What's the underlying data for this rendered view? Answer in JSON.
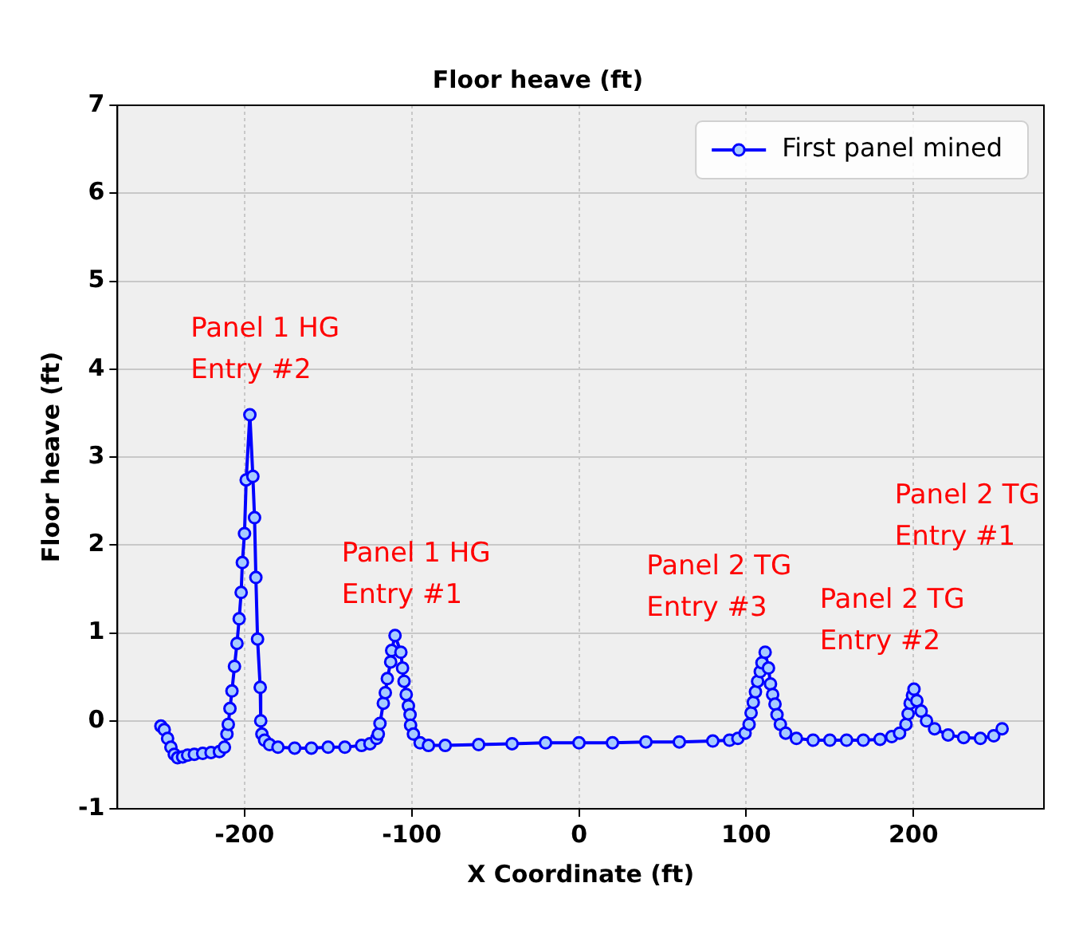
{
  "chart_data": {
    "type": "line",
    "title": "Floor heave (ft)",
    "xlabel": "X Coordinate (ft)",
    "ylabel": "Floor heave (ft)",
    "xlim": [
      -276,
      278
    ],
    "xticks": [
      -200,
      -100,
      0,
      100,
      200
    ],
    "ylim": [
      -1,
      7
    ],
    "yticks": [
      -1,
      0,
      1,
      2,
      3,
      4,
      5,
      6,
      7
    ],
    "grid": true,
    "legend": "top right",
    "marker": "circle",
    "line_style": "solid",
    "series": [
      {
        "name": "First panel mined",
        "color": "#0000ff",
        "x": [
          -250,
          -248,
          -246,
          -244,
          -242,
          -240,
          -237,
          -234,
          -230,
          -225,
          -220,
          -215,
          -212,
          -210.5,
          -209.7,
          -208.7,
          -207.5,
          -206,
          -204.5,
          -203.2,
          -202,
          -201.3,
          -200,
          -199,
          -196.8,
          -195,
          -194,
          -193.2,
          -192.2,
          -190.6,
          -190.3,
          -189.6,
          -188,
          -185,
          -180,
          -170,
          -160,
          -150,
          -140,
          -130,
          -125,
          -121,
          -120,
          -119,
          -117,
          -115.8,
          -114.6,
          -112.6,
          -112,
          -110,
          -106.5,
          -105.5,
          -104.6,
          -103.3,
          -102,
          -101,
          -100.7,
          -99,
          -95,
          -90,
          -80,
          -60,
          -40,
          -20,
          0,
          20,
          40,
          60,
          80,
          90,
          95,
          99.3,
          101.7,
          102.9,
          104.2,
          105.5,
          106.8,
          108.4,
          109.4,
          111.3,
          113.3,
          114.5,
          115.8,
          117.2,
          118.4,
          120.4,
          123.6,
          130,
          140,
          150,
          160,
          170,
          180,
          187,
          191.7,
          195.5,
          196.8,
          198,
          199.4,
          200.3,
          202,
          204.6,
          207.8,
          212.6,
          220.7,
          230,
          240,
          248,
          253
        ],
        "values": [
          -0.06,
          -0.1,
          -0.2,
          -0.3,
          -0.38,
          -0.42,
          -0.41,
          -0.39,
          -0.38,
          -0.37,
          -0.36,
          -0.35,
          -0.3,
          -0.15,
          -0.04,
          0.14,
          0.34,
          0.62,
          0.88,
          1.16,
          1.46,
          1.8,
          2.13,
          2.74,
          3.48,
          2.78,
          2.31,
          1.63,
          0.93,
          0.38,
          0,
          -0.15,
          -0.22,
          -0.27,
          -0.3,
          -0.31,
          -0.31,
          -0.3,
          -0.3,
          -0.28,
          -0.26,
          -0.2,
          -0.15,
          -0.03,
          0.2,
          0.32,
          0.48,
          0.67,
          0.8,
          0.97,
          0.78,
          0.6,
          0.45,
          0.3,
          0.17,
          0.07,
          -0.05,
          -0.15,
          -0.25,
          -0.28,
          -0.28,
          -0.27,
          -0.26,
          -0.25,
          -0.25,
          -0.25,
          -0.24,
          -0.24,
          -0.23,
          -0.22,
          -0.2,
          -0.14,
          -0.04,
          0.09,
          0.21,
          0.33,
          0.45,
          0.56,
          0.66,
          0.78,
          0.6,
          0.42,
          0.3,
          0.19,
          0.07,
          -0.04,
          -0.14,
          -0.2,
          -0.22,
          -0.22,
          -0.22,
          -0.22,
          -0.21,
          -0.18,
          -0.14,
          -0.04,
          0.08,
          0.2,
          0.29,
          0.36,
          0.23,
          0.11,
          0,
          -0.09,
          -0.16,
          -0.19,
          -0.2,
          -0.17,
          -0.09
        ]
      }
    ],
    "annotations": [
      "Panel 1 HG\nEntry #2",
      "Panel 1 HG\nEntry #1",
      "Panel 2 TG\nEntry #3",
      "Panel 2 TG\nEntry #2",
      "Panel 2 TG\nEntry #1"
    ]
  }
}
